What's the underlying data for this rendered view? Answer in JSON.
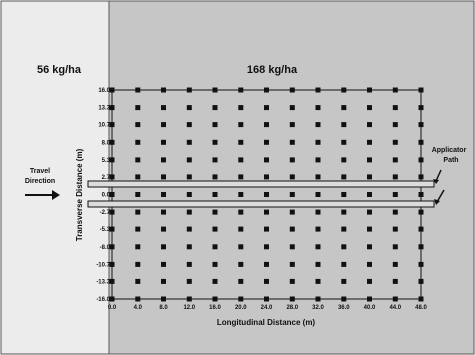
{
  "zones": [
    {
      "label": "56 kg/ha",
      "color": "#ececec"
    },
    {
      "label": "168 kg/ha",
      "color": "#c6c6c6"
    }
  ],
  "axes": {
    "xlabel": "Longitudinal Distance (m)",
    "ylabel": "Transverse Distance (m)",
    "x_ticks": [
      "0.0",
      "4.0",
      "8.0",
      "12.0",
      "16.0",
      "20.0",
      "24.0",
      "28.0",
      "32.0",
      "36.0",
      "40.0",
      "44.0",
      "48.0"
    ],
    "y_ticks": [
      "16.0",
      "13.3",
      "10.7",
      "8.0",
      "5.3",
      "2.7",
      "0.0",
      "-2.7",
      "-5.3",
      "-8.0",
      "-10.7",
      "-13.3",
      "-16.0"
    ]
  },
  "travel_direction": {
    "line1": "Travel",
    "line2": "Direction"
  },
  "applicator_path": {
    "line1": "Applicator",
    "line2": "Path"
  },
  "grid": {
    "x": [
      0,
      4,
      8,
      12,
      16,
      20,
      24,
      28,
      32,
      36,
      40,
      44,
      48
    ],
    "y": [
      16,
      13.3,
      10.7,
      8,
      5.3,
      2.7,
      0,
      -2.7,
      -5.3,
      -8,
      -10.7,
      -13.3,
      -16
    ]
  },
  "colors": {
    "ink": "#111111",
    "light_zone": "#ececec",
    "dark_zone": "#c6c6c6",
    "border": "#555555"
  }
}
